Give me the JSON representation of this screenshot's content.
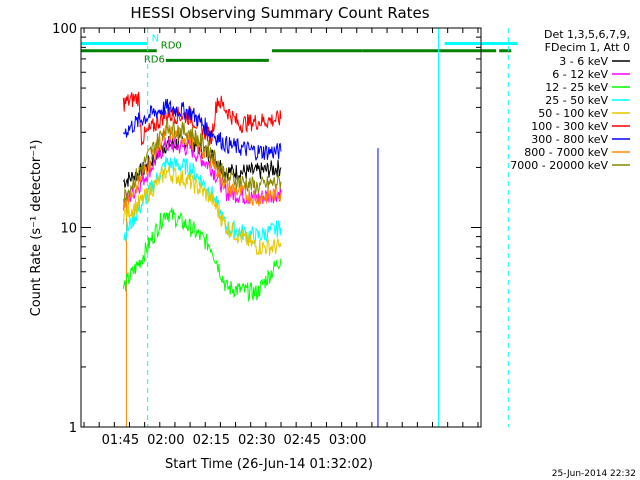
{
  "chart_data": {
    "type": "line",
    "title": "HESSI Observing Summary Count Rates",
    "xlabel": "Start Time (26-Jun-14 01:32:02)",
    "ylabel": "Count Rate (s⁻¹ detector⁻¹)",
    "yscale": "log",
    "ylim": [
      1,
      100
    ],
    "xlim_minutes": [
      0,
      132
    ],
    "x_ticks": [
      {
        "label": "01:45",
        "minute": 13
      },
      {
        "label": "02:00",
        "minute": 28
      },
      {
        "label": "02:15",
        "minute": 43
      },
      {
        "label": "02:30",
        "minute": 58
      },
      {
        "label": "02:45",
        "minute": 73
      },
      {
        "label": "03:00",
        "minute": 88
      }
    ],
    "y_tick_labels": [
      "1",
      "10",
      "100"
    ],
    "legend_header": [
      "Det 1,3,5,6,7,9,",
      "FDecim 1, Att 0"
    ],
    "series": [
      {
        "name": "3 - 6 keV",
        "color": "#000000",
        "points": [
          [
            14,
            17
          ],
          [
            20,
            19
          ],
          [
            28,
            26
          ],
          [
            36,
            27
          ],
          [
            43,
            23
          ],
          [
            48,
            19
          ],
          [
            58,
            19
          ],
          [
            66,
            20
          ]
        ]
      },
      {
        "name": "6 - 12 keV",
        "color": "#ff00ff",
        "points": [
          [
            14,
            13
          ],
          [
            20,
            17
          ],
          [
            28,
            26
          ],
          [
            36,
            25
          ],
          [
            43,
            20
          ],
          [
            48,
            15
          ],
          [
            58,
            14
          ],
          [
            66,
            15
          ]
        ]
      },
      {
        "name": "12 - 25 keV",
        "color": "#00ff00",
        "points": [
          [
            14,
            5
          ],
          [
            20,
            7
          ],
          [
            28,
            12
          ],
          [
            36,
            10
          ],
          [
            43,
            8
          ],
          [
            48,
            5
          ],
          [
            58,
            4.7
          ],
          [
            66,
            7
          ]
        ]
      },
      {
        "name": "25 - 50 keV",
        "color": "#00ffff",
        "points": [
          [
            14,
            9
          ],
          [
            20,
            13
          ],
          [
            28,
            21
          ],
          [
            36,
            20
          ],
          [
            43,
            15
          ],
          [
            48,
            10
          ],
          [
            58,
            9
          ],
          [
            66,
            10
          ]
        ]
      },
      {
        "name": "50 - 100 keV",
        "color": "#e6c800",
        "points": [
          [
            14,
            11.5
          ],
          [
            20,
            13.5
          ],
          [
            28,
            19
          ],
          [
            36,
            17
          ],
          [
            43,
            14
          ],
          [
            48,
            10
          ],
          [
            58,
            8
          ],
          [
            66,
            8
          ]
        ]
      },
      {
        "name": "100 - 300 keV",
        "color": "#ff0000",
        "points": [
          [
            14,
            42
          ],
          [
            19,
            45
          ],
          [
            20,
            28
          ],
          [
            28,
            37
          ],
          [
            36,
            36
          ],
          [
            43,
            28
          ],
          [
            45,
            44
          ],
          [
            52,
            33
          ],
          [
            58,
            34
          ],
          [
            66,
            35
          ]
        ]
      },
      {
        "name": "300 - 800 keV",
        "color": "#0000ff",
        "points": [
          [
            14,
            30
          ],
          [
            20,
            35
          ],
          [
            28,
            40
          ],
          [
            36,
            38
          ],
          [
            43,
            30
          ],
          [
            48,
            26
          ],
          [
            58,
            24
          ],
          [
            66,
            24
          ]
        ]
      },
      {
        "name": "800 - 7000 keV",
        "color": "#ff8800",
        "points": [
          [
            14,
            13
          ],
          [
            20,
            18
          ],
          [
            28,
            30
          ],
          [
            36,
            28
          ],
          [
            43,
            22
          ],
          [
            48,
            16
          ],
          [
            58,
            14
          ],
          [
            66,
            15
          ]
        ]
      },
      {
        "name": "7000 - 20000 keV",
        "color": "#888800",
        "points": [
          [
            14,
            14
          ],
          [
            20,
            20
          ],
          [
            28,
            32
          ],
          [
            36,
            30
          ],
          [
            43,
            24
          ],
          [
            48,
            18
          ],
          [
            58,
            16
          ],
          [
            66,
            17
          ]
        ]
      }
    ],
    "flag_bars": [
      {
        "label": "N",
        "color": "#00ffff",
        "y": 0.935,
        "segments": [
          [
            0,
            22
          ],
          [
            120,
            144
          ]
        ]
      },
      {
        "label": "RD0",
        "color": "#008000",
        "y": 0.905,
        "segments": [
          [
            0,
            25
          ],
          [
            63,
            93
          ],
          [
            93,
            137
          ],
          [
            138,
            142
          ]
        ]
      },
      {
        "label": "RD6",
        "color": "#008000",
        "y": 0.865,
        "segments": [
          [
            28,
            62
          ]
        ]
      }
    ],
    "vertical_lines": [
      {
        "color": "#00ffff",
        "style": "solid",
        "minute": 0
      },
      {
        "color": "#ff8800",
        "style": "solid",
        "minute": 15
      },
      {
        "color": "#00ffff",
        "style": "dashed",
        "minute": 22
      },
      {
        "color": "#0000ff",
        "style": "solid",
        "minute": 98
      },
      {
        "color": "#00ffff",
        "style": "solid",
        "minute": 118
      },
      {
        "color": "#00ffff",
        "style": "dashed",
        "minute": 141
      }
    ],
    "grid": false,
    "legend_position": "right"
  },
  "footer": {
    "timestamp": "25-Jun-2014 22:32"
  }
}
